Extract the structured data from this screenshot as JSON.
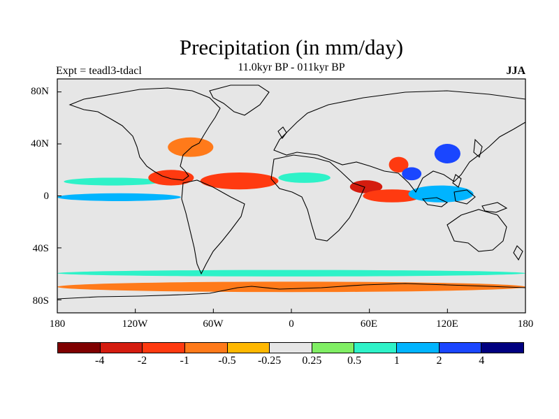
{
  "title": "Precipitation (in mm/day)",
  "subtitle": "11.0kyr BP - 011kyr BP",
  "left_label": "Expt = teadl3-tdacl",
  "right_label": "JJA",
  "lat_ticks": [
    "80N",
    "40N",
    "0",
    "40S",
    "80S"
  ],
  "lon_ticks": [
    "180",
    "120W",
    "60W",
    "0",
    "60E",
    "120E",
    "180"
  ],
  "colorbar": {
    "colors": [
      "#7f0000",
      "#d41c0f",
      "#ff3a10",
      "#ff7a1a",
      "#ffb800",
      "#e6e6e6",
      "#80ee64",
      "#2ef2c8",
      "#00b4ff",
      "#1a46ff",
      "#000080"
    ],
    "labels": [
      "-4",
      "-2",
      "-1",
      "-0.5",
      "-0.25",
      "0.25",
      "0.5",
      "1",
      "2",
      "4"
    ]
  },
  "chart_data": {
    "type": "heatmap",
    "variable": "Precipitation anomaly (mm/day)",
    "season": "JJA",
    "lon_range": [
      -180,
      180
    ],
    "lat_range": [
      -90,
      90
    ],
    "levels": [
      -4,
      -2,
      -1,
      -0.5,
      -0.25,
      0.25,
      0.5,
      1,
      2,
      4
    ],
    "features": [
      {
        "name": "tropical-pacific-band",
        "lon": [
          -175,
          -100
        ],
        "lat": [
          8,
          14
        ],
        "value": 0.6
      },
      {
        "name": "central-america-dry",
        "lon": [
          -110,
          -75
        ],
        "lat": [
          8,
          20
        ],
        "value": -2
      },
      {
        "name": "equatorial-pacific-wet",
        "lon": [
          -180,
          -85
        ],
        "lat": [
          -4,
          2
        ],
        "value": 1.5
      },
      {
        "name": "us-east-dry",
        "lon": [
          -95,
          -60
        ],
        "lat": [
          30,
          45
        ],
        "value": -1
      },
      {
        "name": "north-atlantic-dry",
        "lon": [
          -70,
          -10
        ],
        "lat": [
          5,
          18
        ],
        "value": -1.5
      },
      {
        "name": "sahel-wet",
        "lon": [
          -10,
          30
        ],
        "lat": [
          10,
          18
        ],
        "value": 0.5
      },
      {
        "name": "arabian-sea-dry",
        "lon": [
          45,
          70
        ],
        "lat": [
          2,
          12
        ],
        "value": -2.5
      },
      {
        "name": "indian-ocean-dry",
        "lon": [
          55,
          100
        ],
        "lat": [
          -5,
          5
        ],
        "value": -2
      },
      {
        "name": "india-monsoon-dry",
        "lon": [
          75,
          90
        ],
        "lat": [
          18,
          30
        ],
        "value": -2
      },
      {
        "name": "bay-of-bengal-wet",
        "lon": [
          85,
          100
        ],
        "lat": [
          12,
          22
        ],
        "value": 2
      },
      {
        "name": "east-asia-wet",
        "lon": [
          110,
          130
        ],
        "lat": [
          25,
          40
        ],
        "value": 3
      },
      {
        "name": "maritime-continent-wet",
        "lon": [
          90,
          140
        ],
        "lat": [
          -5,
          8
        ],
        "value": 1.5
      },
      {
        "name": "southern-ocean-wet",
        "lon": [
          -180,
          180
        ],
        "lat": [
          -62,
          -57
        ],
        "value": 0.6
      },
      {
        "name": "southern-ocean-dry",
        "lon": [
          -180,
          180
        ],
        "lat": [
          -74,
          -66
        ],
        "value": -1
      }
    ]
  }
}
